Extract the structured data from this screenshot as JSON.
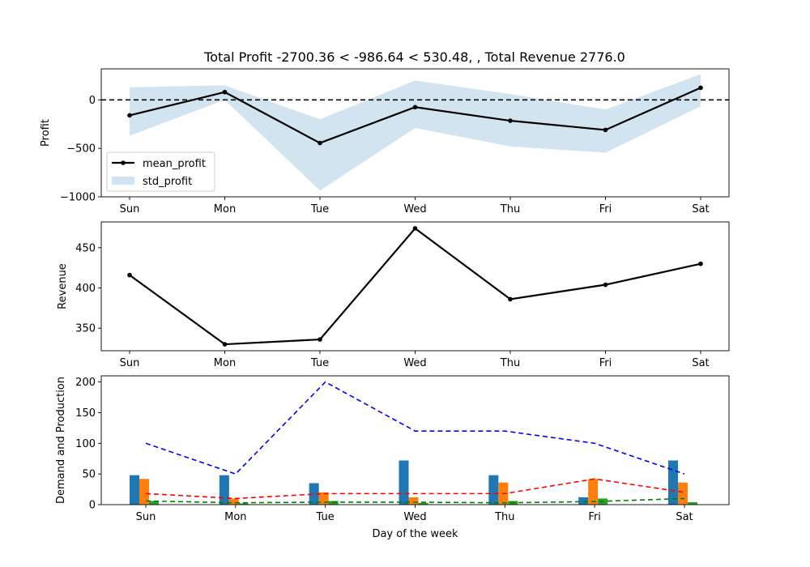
{
  "title": "Total Profit -2700.36 < -986.64 < 530.48, , Total Revenue 2776.0",
  "chart_data": [
    {
      "type": "line",
      "ylabel": "Profit",
      "xlabel": "",
      "categories": [
        "Sun",
        "Mon",
        "Tue",
        "Wed",
        "Thu",
        "Fri",
        "Sat"
      ],
      "ylim": [
        -1000,
        320
      ],
      "yticks": [
        -1000,
        -500,
        0
      ],
      "ytick_labels": [
        "−1000",
        "−500",
        "0"
      ],
      "reference_line": {
        "y": 0,
        "style": "dashed",
        "color": "#000000"
      },
      "series": [
        {
          "name": "mean_profit",
          "values": [
            -160,
            80,
            -445,
            -75,
            -215,
            -310,
            125
          ],
          "color": "#000000"
        }
      ],
      "band": {
        "name": "std_profit",
        "lower": [
          -370,
          0,
          -935,
          -290,
          -480,
          -545,
          -65
        ],
        "upper": [
          130,
          150,
          -200,
          200,
          60,
          -100,
          265
        ],
        "color": "#1f77b4"
      },
      "legend": "lower-left"
    },
    {
      "type": "line",
      "ylabel": "Revenue",
      "xlabel": "",
      "categories": [
        "Sun",
        "Mon",
        "Tue",
        "Wed",
        "Thu",
        "Fri",
        "Sat"
      ],
      "ylim": [
        322,
        482
      ],
      "yticks": [
        350,
        400,
        450
      ],
      "ytick_labels": [
        "350",
        "400",
        "450"
      ],
      "series": [
        {
          "values": [
            416,
            330,
            336,
            474,
            386,
            404,
            430
          ],
          "color": "#000000"
        }
      ]
    },
    {
      "type": "bar",
      "ylabel": "Demand and Production",
      "xlabel": "Day of the week",
      "categories": [
        "Sun",
        "Mon",
        "Tue",
        "Wed",
        "Thu",
        "Fri",
        "Sat"
      ],
      "ylim": [
        0,
        210
      ],
      "yticks": [
        0,
        50,
        100,
        150,
        200
      ],
      "ytick_labels": [
        "0",
        "50",
        "100",
        "150",
        "200"
      ],
      "bar_series": [
        {
          "values": [
            48,
            48,
            35,
            72,
            48,
            12,
            72
          ],
          "color": "#1f77b4"
        },
        {
          "values": [
            42,
            10,
            20,
            12,
            36,
            42,
            36
          ],
          "color": "#ff7f0e"
        },
        {
          "values": [
            6,
            2,
            6,
            3,
            6,
            10,
            4
          ],
          "color": "#2ca02c"
        }
      ],
      "line_series": [
        {
          "values": [
            100,
            50,
            200,
            120,
            120,
            100,
            50
          ],
          "color": "#0000ff",
          "style": "dashed"
        },
        {
          "values": [
            18,
            10,
            18,
            18,
            18,
            42,
            20
          ],
          "color": "#ff0000",
          "style": "dashed"
        },
        {
          "values": [
            6,
            3,
            4,
            4,
            3,
            5,
            10
          ],
          "color": "#008000",
          "style": "dashed"
        }
      ]
    }
  ]
}
